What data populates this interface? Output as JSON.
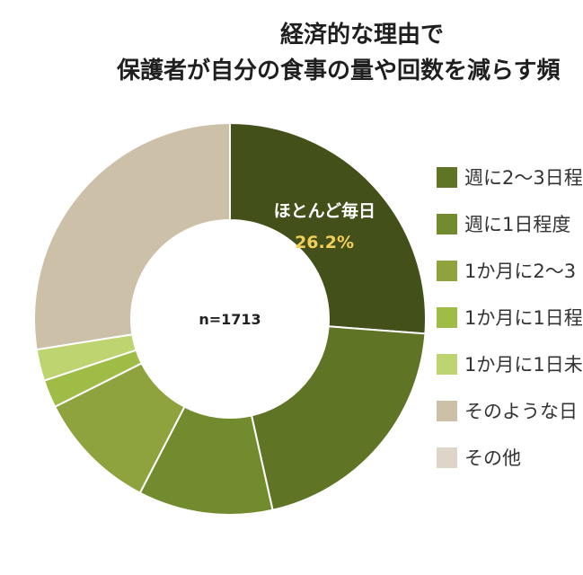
{
  "title": {
    "line1": "経済的な理由で",
    "line2": "保護者が自分の食事の量や回数を減らす頻"
  },
  "chart_data": {
    "type": "pie",
    "donut": true,
    "center_label": "n=1713",
    "slices": [
      {
        "name": "ほとんど毎日",
        "value": 26.2,
        "color": "#44501a"
      },
      {
        "name": "週に2〜3日程",
        "value": 20.3,
        "color": "#5f7424"
      },
      {
        "name": "週に1日程度",
        "value": 11.1,
        "color": "#728b2f"
      },
      {
        "name": "1か月に2〜3",
        "value": 10.0,
        "color": "#8ea33e"
      },
      {
        "name": "1か月に1日程",
        "value": 2.3,
        "color": "#9fbd46"
      },
      {
        "name": "1か月に1日未",
        "value": 2.6,
        "color": "#bdd470"
      },
      {
        "name": "そのような日",
        "value": 27.5,
        "color": "#ccc0a9"
      }
    ],
    "highlight": {
      "label": "ほとんど毎日",
      "value_text": "26.2%",
      "value_color": "#f2cf5b"
    },
    "legend": [
      {
        "label": "週に2〜3日程",
        "color": "#5f7424"
      },
      {
        "label": "週に1日程度",
        "color": "#728b2f"
      },
      {
        "label": "1か月に2〜3",
        "color": "#8ea33e"
      },
      {
        "label": "1か月に1日程",
        "color": "#9fbd46"
      },
      {
        "label": "1か月に1日未",
        "color": "#bdd470"
      },
      {
        "label": "そのような日",
        "color": "#ccc0a9"
      },
      {
        "label": "その他",
        "color": "#ddd5c8"
      }
    ]
  }
}
